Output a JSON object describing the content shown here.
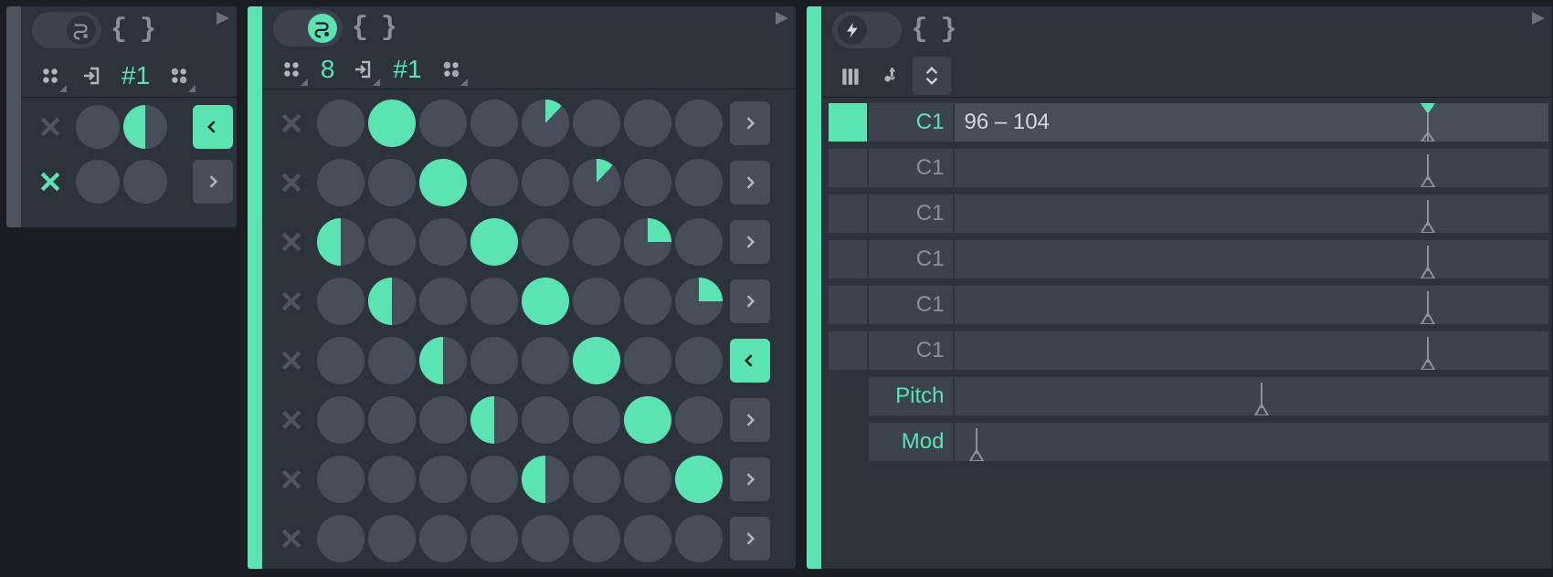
{
  "accent_color": "#5be3b2",
  "bg_color": "#2d333d",
  "cell_empty_color": "#474e5a",
  "text_muted_color": "#8a919e",
  "panel1": {
    "channel_label": "#1",
    "rows": [
      {
        "x_active": false,
        "steps": [
          {
            "fill": 0
          },
          {
            "fill": 0.5
          }
        ],
        "nav": "left",
        "nav_active": true
      },
      {
        "x_active": true,
        "steps": [
          {
            "fill": 0
          },
          {
            "fill": 0
          }
        ],
        "nav": "right",
        "nav_active": false
      }
    ]
  },
  "panel2": {
    "count_label": "8",
    "channel_label": "#1",
    "rows": [
      {
        "steps": [
          0,
          1,
          0,
          0,
          0.12,
          0,
          0,
          0
        ],
        "nav": "right",
        "nav_active": false
      },
      {
        "steps": [
          0,
          0,
          1,
          0,
          0,
          0.12,
          0,
          0
        ],
        "nav": "right",
        "nav_active": false
      },
      {
        "steps": [
          0.5,
          0,
          0,
          1,
          0,
          0,
          0.25,
          0
        ],
        "nav": "right",
        "nav_active": false
      },
      {
        "steps": [
          0,
          0.5,
          0,
          0,
          1,
          0,
          0,
          0.25
        ],
        "nav": "right",
        "nav_active": false
      },
      {
        "steps": [
          0,
          0,
          0.5,
          0,
          0,
          1,
          0,
          0
        ],
        "nav": "left",
        "nav_active": true
      },
      {
        "steps": [
          0,
          0,
          0,
          0.55,
          0,
          0,
          1,
          0
        ],
        "nav": "right",
        "nav_active": false
      },
      {
        "steps": [
          0,
          0,
          0,
          0,
          0.55,
          0,
          0,
          1
        ],
        "nav": "right",
        "nav_active": false
      },
      {
        "steps": [
          0,
          0,
          0,
          0,
          0,
          0,
          0,
          0
        ],
        "nav": "right",
        "nav_active": false
      }
    ]
  },
  "panel3": {
    "rows": [
      {
        "square_active": true,
        "note": "C1",
        "note_active": true,
        "value_text": "96 – 104",
        "marker_pos": 0.78,
        "marker_style": "flag",
        "highlight": true
      },
      {
        "square_active": false,
        "note": "C1",
        "note_active": false,
        "value_text": "",
        "marker_pos": 0.78,
        "marker_style": "pointer",
        "highlight": false
      },
      {
        "square_active": false,
        "note": "C1",
        "note_active": false,
        "value_text": "",
        "marker_pos": 0.78,
        "marker_style": "pointer",
        "highlight": false
      },
      {
        "square_active": false,
        "note": "C1",
        "note_active": false,
        "value_text": "",
        "marker_pos": 0.78,
        "marker_style": "pointer",
        "highlight": false
      },
      {
        "square_active": false,
        "note": "C1",
        "note_active": false,
        "value_text": "",
        "marker_pos": 0.78,
        "marker_style": "pointer",
        "highlight": false
      },
      {
        "square_active": false,
        "note": "C1",
        "note_active": false,
        "value_text": "",
        "marker_pos": 0.78,
        "marker_style": "pointer",
        "highlight": false
      },
      {
        "square_active": false,
        "note": "Pitch",
        "note_active": true,
        "value_text": "",
        "marker_pos": 0.5,
        "marker_style": "pointer",
        "highlight": false,
        "no_square": true
      },
      {
        "square_active": false,
        "note": "Mod",
        "note_active": true,
        "value_text": "",
        "marker_pos": 0.02,
        "marker_style": "pointer",
        "highlight": false,
        "no_square": true
      }
    ]
  }
}
